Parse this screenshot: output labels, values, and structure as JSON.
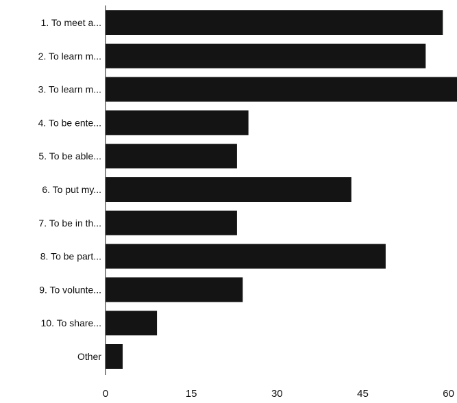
{
  "chart_data": {
    "type": "bar",
    "orientation": "horizontal",
    "categories": [
      "1. To meet a...",
      "2. To learn m...",
      "3. To learn m...",
      "4. To be ente...",
      "5. To be able...",
      "6. To put my...",
      "7. To be in th...",
      "8. To be part...",
      "9. To volunte...",
      "10. To share...",
      "Other"
    ],
    "values": [
      59,
      56,
      62,
      25,
      23,
      43,
      23,
      49,
      24,
      9,
      3
    ],
    "xlim": [
      0,
      61
    ],
    "xticks": [
      0,
      15,
      30,
      45,
      60
    ],
    "xtick_labels": [
      "0",
      "15",
      "30",
      "45",
      "60"
    ],
    "grid": false,
    "legend": "none",
    "bar_color": "#141414",
    "title": "",
    "xlabel": "",
    "ylabel": ""
  }
}
